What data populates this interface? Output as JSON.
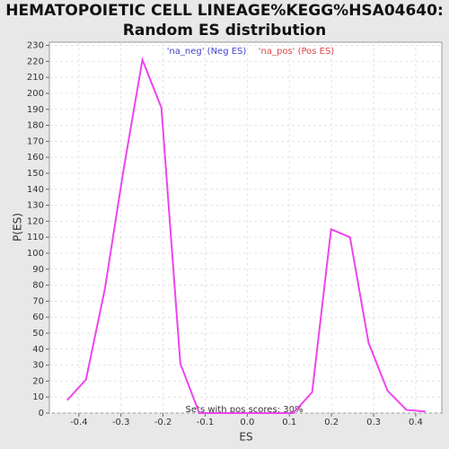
{
  "chart_data": {
    "type": "line",
    "title": [
      "HEMATOPOIETIC CELL LINEAGE%KEGG%HSA04640:",
      "Random ES distribution"
    ],
    "legend": [
      {
        "name": "'na_neg' (Neg ES)",
        "color": "#4444cc"
      },
      {
        "name": "'na_pos' (Pos ES)",
        "color": "#e04444"
      }
    ],
    "annotation": "Sets with pos scores: 30%",
    "xlabel": "ES",
    "ylabel": "P(ES)",
    "x": [
      -0.428,
      -0.383,
      -0.338,
      -0.294,
      -0.249,
      -0.204,
      -0.159,
      -0.114,
      -0.07,
      -0.025,
      0.02,
      0.065,
      0.109,
      0.154,
      0.199,
      0.244,
      0.288,
      0.333,
      0.378,
      0.423
    ],
    "series": [
      {
        "color": "#ee44ee",
        "values": [
          8,
          21,
          78,
          152,
          221,
          191,
          31,
          0,
          0,
          0,
          0,
          0,
          0,
          13,
          115,
          110,
          44,
          14,
          2,
          1
        ]
      }
    ],
    "xlim": [
      -0.47,
      0.462
    ],
    "ylim": [
      0,
      232
    ],
    "xticks": [
      -0.4,
      -0.3,
      -0.2,
      -0.1,
      {
        "value": 0,
        "label": "0.0"
      },
      0.1,
      0.2,
      0.3,
      0.4
    ],
    "yticks": [
      0,
      10,
      20,
      30,
      40,
      50,
      60,
      70,
      80,
      90,
      100,
      110,
      120,
      130,
      140,
      150,
      160,
      170,
      180,
      190,
      200,
      210,
      220,
      230
    ],
    "grid": true
  }
}
